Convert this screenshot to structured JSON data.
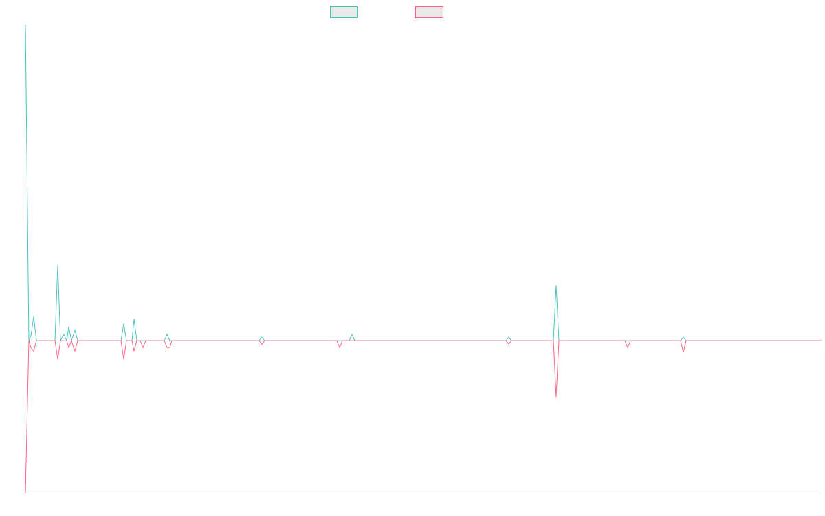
{
  "chart_data": {
    "type": "line",
    "x": [
      0,
      5,
      8,
      12,
      16,
      43,
      47,
      51,
      56,
      60,
      63,
      67,
      72,
      76,
      139,
      143,
      147,
      155,
      158,
      162,
      167,
      171,
      175,
      202,
      206,
      210,
      213,
      340,
      344,
      348,
      453,
      457,
      461,
      471,
      475,
      479,
      699,
      703,
      707,
      768,
      772,
      776,
      872,
      876,
      880,
      953,
      957,
      961,
      1158
    ],
    "xlim": [
      0,
      1158
    ],
    "ylim": [
      -48.1,
      100
    ],
    "series": [
      {
        "color": "#4bc0c0",
        "values": [
          100,
          0,
          1.5,
          7.6,
          0,
          0,
          24.0,
          0,
          2.0,
          0,
          4.4,
          0,
          3.3,
          0,
          0,
          5.4,
          0,
          0,
          6.8,
          0,
          0,
          0,
          0,
          0,
          2.0,
          0,
          0,
          0,
          1.1,
          0,
          0,
          0,
          0,
          0,
          2.0,
          0,
          0,
          1.1,
          0,
          0,
          17.6,
          0,
          0,
          0,
          0,
          0,
          1.1,
          0,
          0
        ]
      },
      {
        "color": "#ff6384",
        "values": [
          -48.1,
          0,
          -2.2,
          -3.3,
          0,
          0,
          -5.9,
          0,
          0,
          0,
          -2.2,
          0,
          -3.3,
          0,
          0,
          -5.9,
          0,
          0,
          -3.3,
          0,
          0,
          -2.2,
          0,
          0,
          -2.2,
          -2.2,
          0,
          0,
          -1.1,
          0,
          0,
          -2.2,
          0,
          0,
          0,
          0,
          0,
          -1.1,
          0,
          0,
          -17.9,
          0,
          0,
          -2.2,
          0,
          0,
          -3.7,
          0,
          0
        ]
      }
    ]
  }
}
